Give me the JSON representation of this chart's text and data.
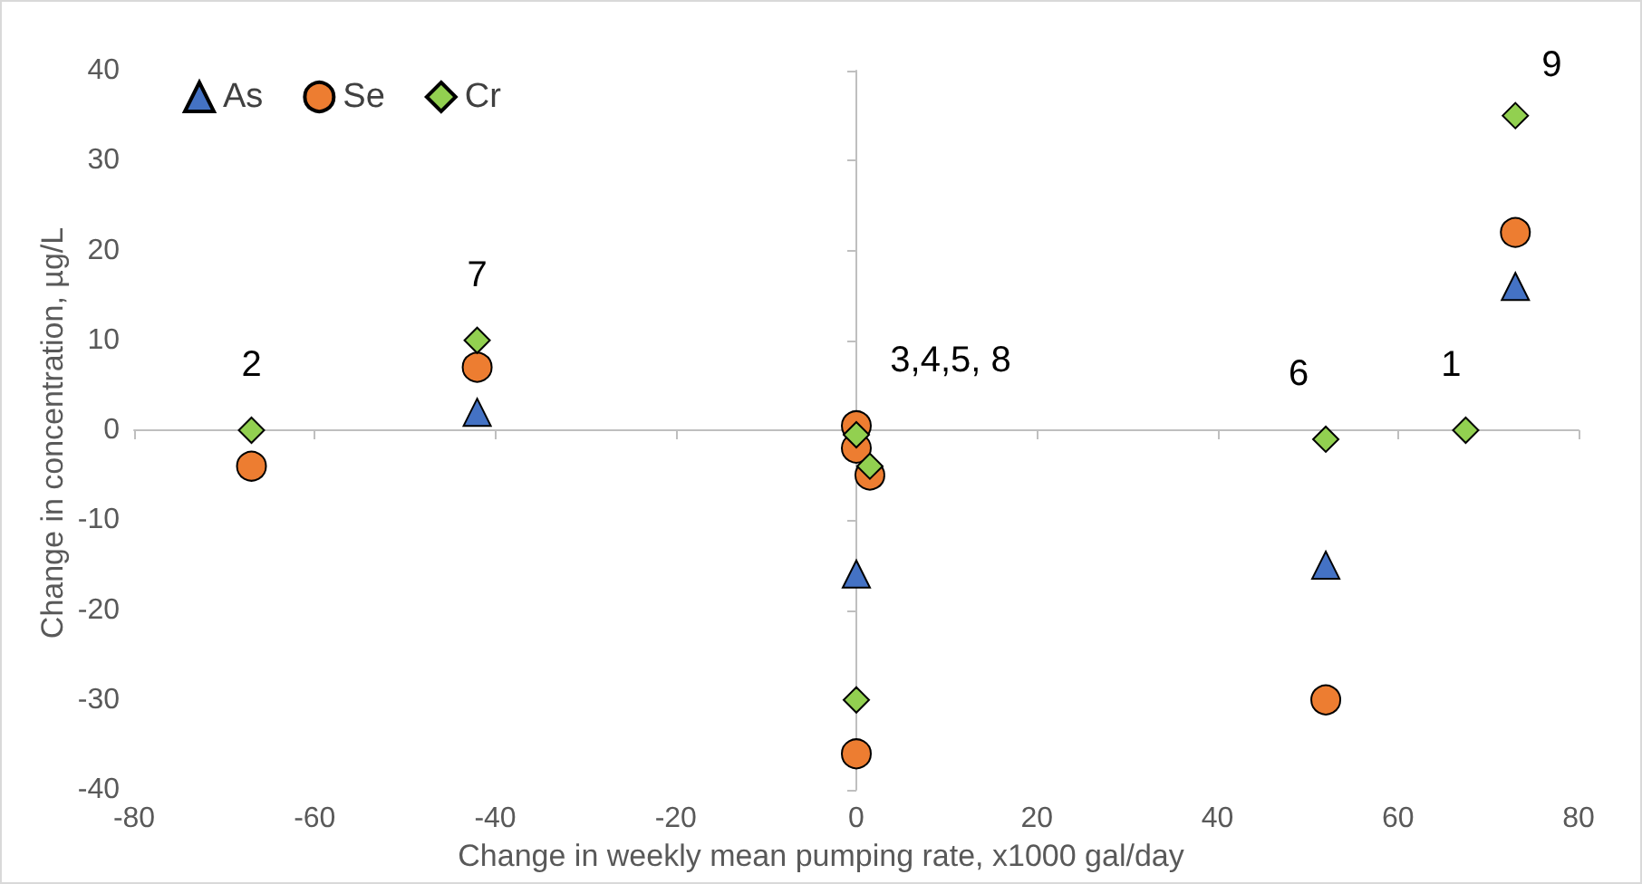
{
  "chart_data": {
    "type": "scatter",
    "xlabel": "Change in weekly mean pumping rate, x1000 gal/day",
    "ylabel": "Change in concentration, µg/L",
    "xlim": [
      -80,
      80
    ],
    "xticks": [
      -80,
      -60,
      -40,
      -20,
      0,
      20,
      40,
      60,
      80
    ],
    "ylim": [
      -40,
      40
    ],
    "yticks": [
      -40,
      -30,
      -20,
      -10,
      0,
      10,
      20,
      30,
      40
    ],
    "legend": "top left",
    "series": [
      {
        "name": "As",
        "color": "#4472c4",
        "marker": "triangle",
        "x": [
          -42,
          0,
          52,
          73
        ],
        "values": [
          2,
          -16,
          -15,
          16
        ]
      },
      {
        "name": "Se",
        "color": "#ed7d31",
        "marker": "circle",
        "x": [
          -67,
          -42,
          0,
          0,
          1.5,
          0,
          52,
          73
        ],
        "values": [
          -4,
          7,
          0.5,
          -2,
          -5,
          -36,
          -30,
          22
        ]
      },
      {
        "name": "Cr",
        "color": "#92d050",
        "marker": "diamond",
        "x": [
          -67,
          -42,
          0,
          1.5,
          0,
          52,
          67.5,
          73
        ],
        "values": [
          0,
          10,
          -0.5,
          -4,
          -30,
          -1,
          0,
          35
        ]
      }
    ],
    "annotations": [
      {
        "text": "2",
        "x": -67,
        "y": 0
      },
      {
        "text": "7",
        "x": -42,
        "y": 10
      },
      {
        "text": "3,4,5, 8",
        "x": 0,
        "y": 0.5
      },
      {
        "text": "6",
        "x": 52,
        "y": -1
      },
      {
        "text": "1",
        "x": 67.5,
        "y": 0
      },
      {
        "text": "9",
        "x": 73,
        "y": 35
      }
    ]
  }
}
